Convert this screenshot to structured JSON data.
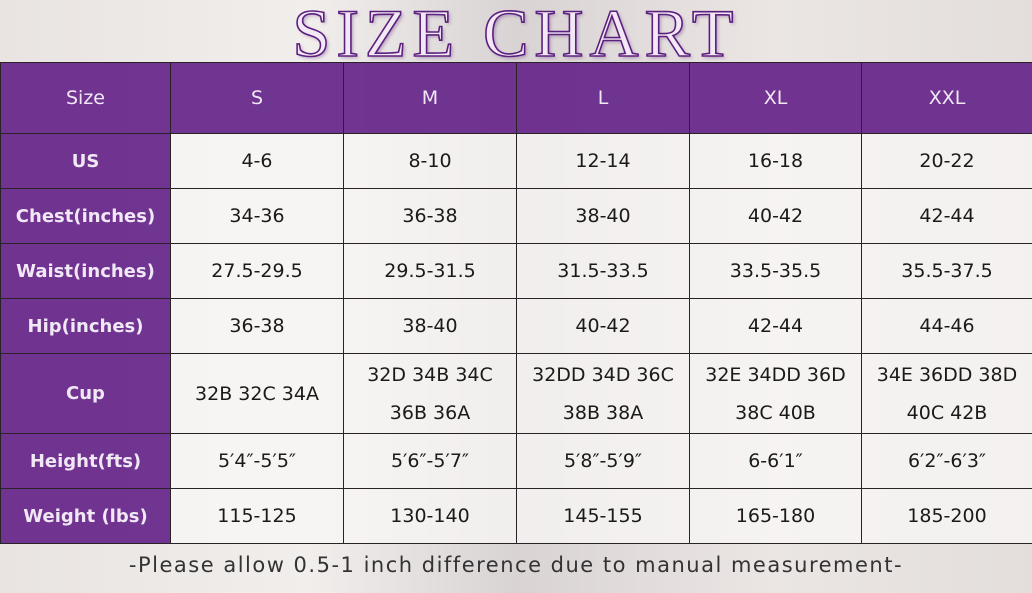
{
  "title": "SIZE CHART",
  "header": [
    "Size",
    "S",
    "M",
    "L",
    "XL",
    "XXL"
  ],
  "rows": [
    {
      "label": "US",
      "values": [
        "4-6",
        "8-10",
        "12-14",
        "16-18",
        "20-22"
      ]
    },
    {
      "label": "Chest(inches)",
      "values": [
        "34-36",
        "36-38",
        "38-40",
        "40-42",
        "42-44"
      ]
    },
    {
      "label": "Waist(inches)",
      "values": [
        "27.5-29.5",
        "29.5-31.5",
        "31.5-33.5",
        "33.5-35.5",
        "35.5-37.5"
      ]
    },
    {
      "label": "Hip(inches)",
      "values": [
        "36-38",
        "38-40",
        "40-42",
        "42-44",
        "44-46"
      ]
    },
    {
      "label": "Cup",
      "values": [
        [
          "32B 32C 34A"
        ],
        [
          "32D 34B 34C",
          "36B 36A"
        ],
        [
          "32DD 34D 36C",
          "38B 38A"
        ],
        [
          "32E 34DD 36D",
          "38C 40B"
        ],
        [
          "34E 36DD 38D",
          "40C 42B"
        ]
      ]
    },
    {
      "label": "Height(fts)",
      "values": [
        "5′4″-5′5″",
        "5′6″-5′7″",
        "5′8″-5′9″",
        "6-6′1″",
        "6′2″-6′3″"
      ]
    },
    {
      "label": "Weight (lbs)",
      "values": [
        "115-125",
        "130-140",
        "145-155",
        "165-180",
        "185-200"
      ]
    }
  ],
  "note": "-Please allow 0.5-1 inch difference due to manual measurement-",
  "colors": {
    "header": "#66268a",
    "title": "#5b1f7e"
  }
}
